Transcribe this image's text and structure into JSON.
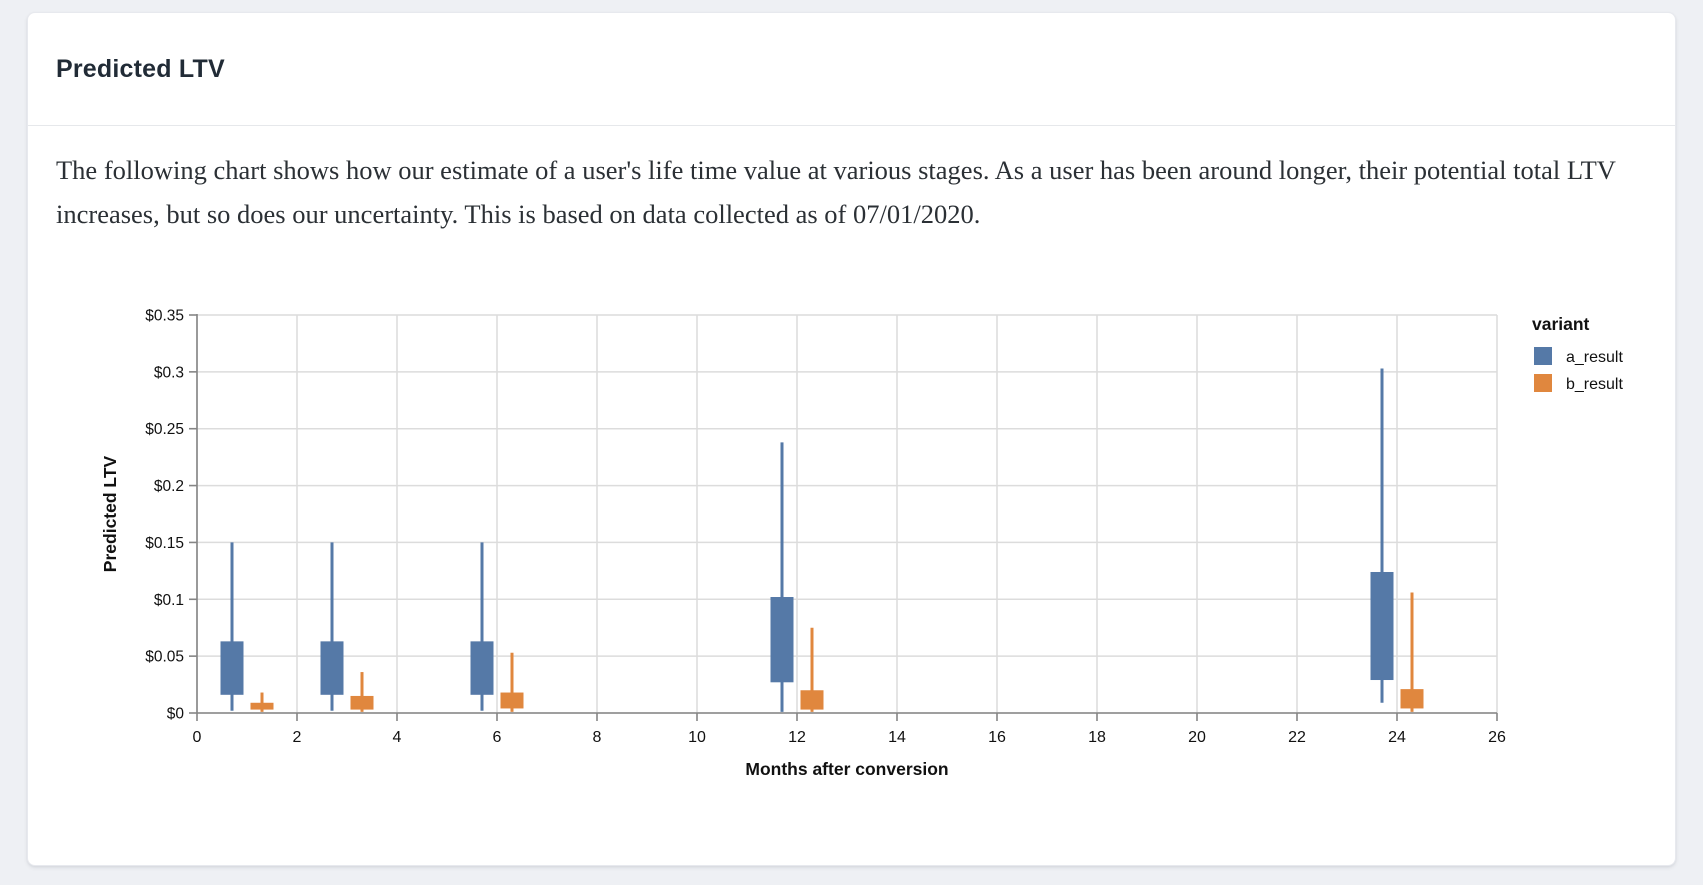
{
  "card": {
    "header": {
      "title": "Predicted LTV"
    },
    "description": "The following chart shows how our estimate of a user's life time value at various stages. As a user has been around longer, their potential total LTV increases, but so does our uncertainty. This is based on data collected as of 07/01/2020."
  },
  "chart_data": {
    "type": "boxplot",
    "title": "",
    "xlabel": "Months after conversion",
    "ylabel": "Predicted LTV",
    "xlim": [
      0,
      26
    ],
    "ylim": [
      0,
      0.35
    ],
    "x_ticks": [
      0,
      2,
      4,
      6,
      8,
      10,
      12,
      14,
      16,
      18,
      20,
      22,
      24,
      26
    ],
    "y_ticks": [
      {
        "value": 0,
        "label": "$0"
      },
      {
        "value": 0.05,
        "label": "$0.05"
      },
      {
        "value": 0.1,
        "label": "$0.1"
      },
      {
        "value": 0.15,
        "label": "$0.15"
      },
      {
        "value": 0.2,
        "label": "$0.2"
      },
      {
        "value": 0.25,
        "label": "$0.25"
      },
      {
        "value": 0.3,
        "label": "$0.3"
      },
      {
        "value": 0.35,
        "label": "$0.35"
      }
    ],
    "grid": true,
    "legend": {
      "title": "variant",
      "position": "top-right",
      "entries": [
        {
          "name": "a_result",
          "color": "#5579a7"
        },
        {
          "name": "b_result",
          "color": "#e0873e"
        }
      ]
    },
    "months": [
      1,
      3,
      6,
      12,
      24
    ],
    "series": [
      {
        "name": "a_result",
        "color": "#5579a7",
        "boxes": [
          {
            "month": 1,
            "whisker_low": 0.002,
            "q1": 0.016,
            "q3": 0.063,
            "whisker_high": 0.15
          },
          {
            "month": 3,
            "whisker_low": 0.002,
            "q1": 0.016,
            "q3": 0.063,
            "whisker_high": 0.15
          },
          {
            "month": 6,
            "whisker_low": 0.002,
            "q1": 0.016,
            "q3": 0.063,
            "whisker_high": 0.15
          },
          {
            "month": 12,
            "whisker_low": 0.001,
            "q1": 0.027,
            "q3": 0.102,
            "whisker_high": 0.238
          },
          {
            "month": 24,
            "whisker_low": 0.009,
            "q1": 0.029,
            "q3": 0.124,
            "whisker_high": 0.303
          }
        ]
      },
      {
        "name": "b_result",
        "color": "#e0873e",
        "boxes": [
          {
            "month": 1,
            "whisker_low": 0.001,
            "q1": 0.003,
            "q3": 0.009,
            "whisker_high": 0.018
          },
          {
            "month": 3,
            "whisker_low": 0.001,
            "q1": 0.003,
            "q3": 0.015,
            "whisker_high": 0.036
          },
          {
            "month": 6,
            "whisker_low": 0.001,
            "q1": 0.004,
            "q3": 0.018,
            "whisker_high": 0.053
          },
          {
            "month": 12,
            "whisker_low": 0.001,
            "q1": 0.003,
            "q3": 0.02,
            "whisker_high": 0.075
          },
          {
            "month": 24,
            "whisker_low": 0.001,
            "q1": 0.004,
            "q3": 0.021,
            "whisker_high": 0.106
          }
        ]
      }
    ]
  }
}
